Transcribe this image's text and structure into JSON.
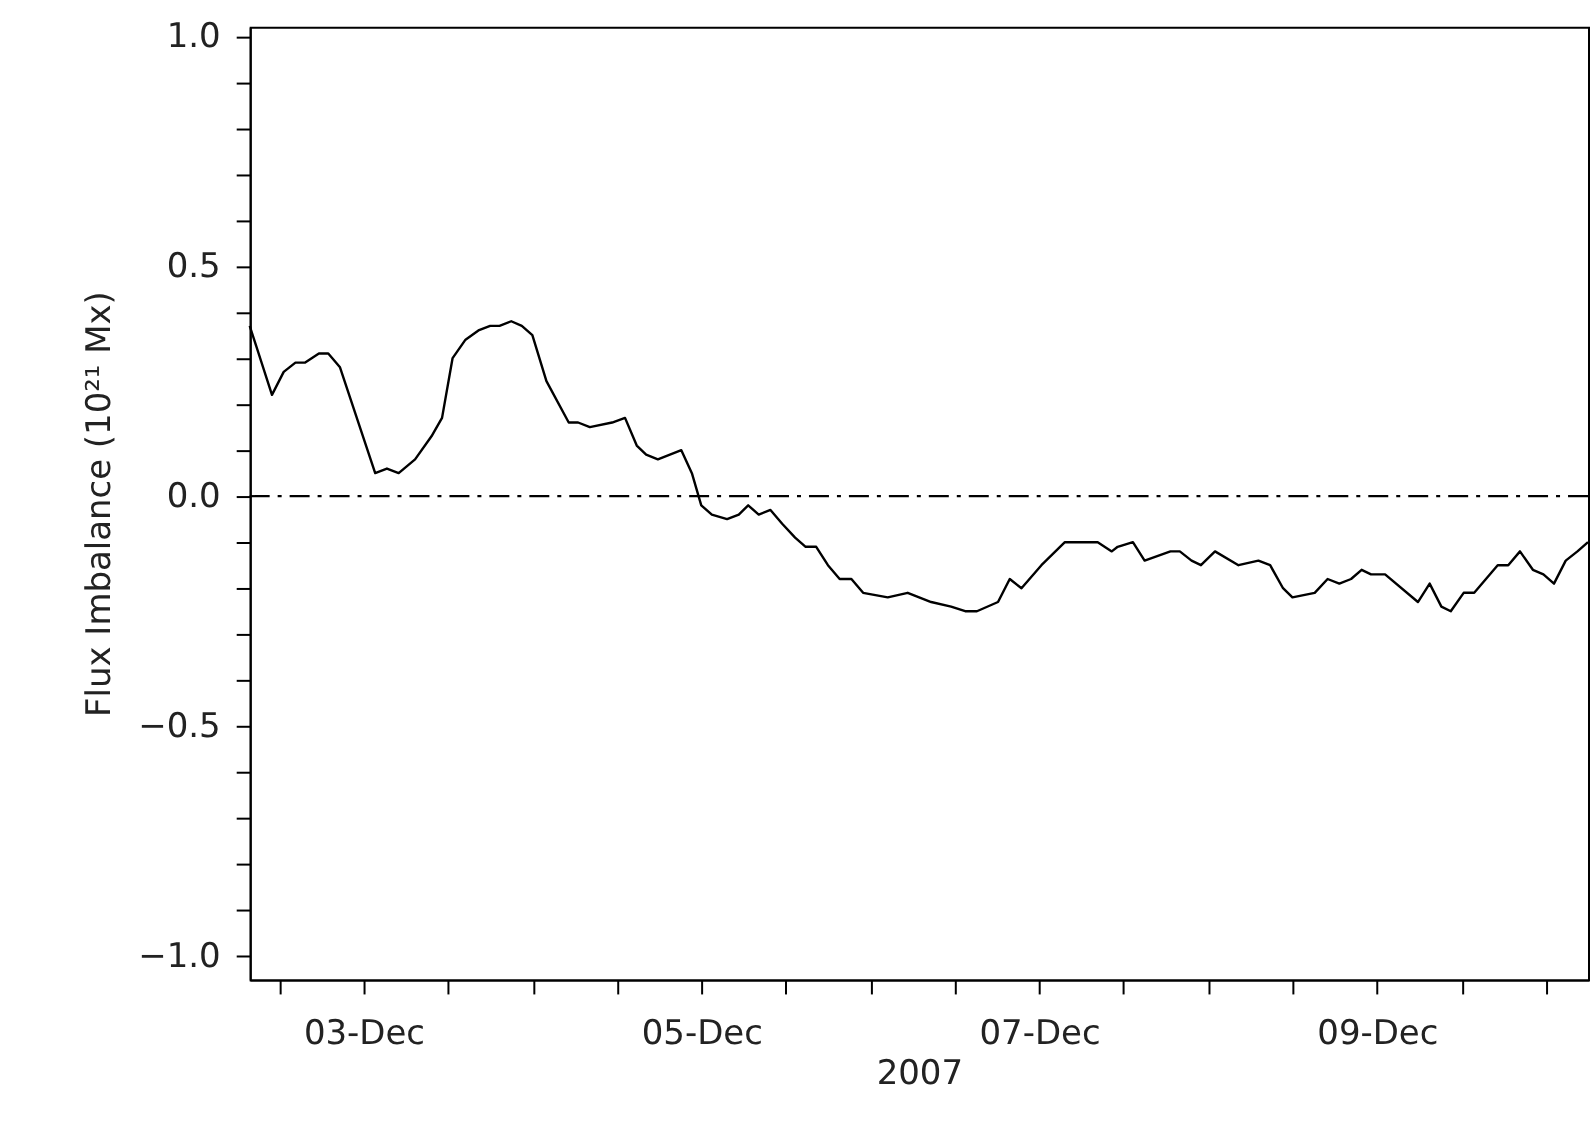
{
  "chart_data": {
    "type": "line",
    "xlabel": "2007",
    "ylabel": "Flux Imbalance (10²¹ Mx)",
    "x": [
      "2007-12-02T07:50",
      "2007-12-02T11:00",
      "2007-12-02T12:40",
      "2007-12-02T14:20",
      "2007-12-02T15:40",
      "2007-12-02T17:40",
      "2007-12-02T19:00",
      "2007-12-02T20:40",
      "2007-12-03T01:40",
      "2007-12-03T03:20",
      "2007-12-03T05:00",
      "2007-12-03T07:20",
      "2007-12-03T09:40",
      "2007-12-03T11:10",
      "2007-12-03T12:40",
      "2007-12-03T14:30",
      "2007-12-03T16:20",
      "2007-12-03T18:00",
      "2007-12-03T19:20",
      "2007-12-03T21:00",
      "2007-12-03T22:30",
      "2007-12-04T00:00",
      "2007-12-04T02:00",
      "2007-12-04T05:10",
      "2007-12-04T06:30",
      "2007-12-04T08:10",
      "2007-12-04T11:20",
      "2007-12-04T13:10",
      "2007-12-04T14:50",
      "2007-12-04T16:10",
      "2007-12-04T17:50",
      "2007-12-04T21:10",
      "2007-12-04T22:40",
      "2007-12-05T00:00",
      "2007-12-05T01:30",
      "2007-12-05T03:40",
      "2007-12-05T05:20",
      "2007-12-05T06:40",
      "2007-12-05T08:10",
      "2007-12-05T09:50",
      "2007-12-05T11:30",
      "2007-12-05T13:20",
      "2007-12-05T14:50",
      "2007-12-05T16:20",
      "2007-12-05T18:00",
      "2007-12-05T19:40",
      "2007-12-05T21:20",
      "2007-12-05T23:00",
      "2007-12-06T02:30",
      "2007-12-06T05:20",
      "2007-12-06T08:40",
      "2007-12-06T11:30",
      "2007-12-06T13:30",
      "2007-12-06T15:10",
      "2007-12-06T18:10",
      "2007-12-06T19:50",
      "2007-12-06T21:30",
      "2007-12-07T00:20",
      "2007-12-07T03:40",
      "2007-12-07T05:30",
      "2007-12-07T08:20",
      "2007-12-07T10:20",
      "2007-12-07T11:10",
      "2007-12-07T13:20",
      "2007-12-07T15:00",
      "2007-12-07T18:40",
      "2007-12-07T20:00",
      "2007-12-07T21:40",
      "2007-12-07T23:00",
      "2007-12-08T01:00",
      "2007-12-08T04:20",
      "2007-12-08T07:10",
      "2007-12-08T08:50",
      "2007-12-08T10:40",
      "2007-12-08T12:00",
      "2007-12-08T15:10",
      "2007-12-08T17:00",
      "2007-12-08T18:40",
      "2007-12-08T20:20",
      "2007-12-08T21:50",
      "2007-12-08T23:10",
      "2007-12-09T01:10",
      "2007-12-09T05:50",
      "2007-12-09T07:30",
      "2007-12-09T09:10",
      "2007-12-09T10:30",
      "2007-12-09T12:20",
      "2007-12-09T13:50",
      "2007-12-09T17:10",
      "2007-12-09T18:40",
      "2007-12-09T20:20",
      "2007-12-09T22:10",
      "2007-12-09T23:40",
      "2007-12-10T01:10",
      "2007-12-10T02:50",
      "2007-12-10T04:30",
      "2007-12-10T06:00"
    ],
    "series": [
      {
        "color": "#000000",
        "values": [
          0.37,
          0.22,
          0.27,
          0.29,
          0.29,
          0.31,
          0.31,
          0.28,
          0.05,
          0.06,
          0.05,
          0.08,
          0.13,
          0.17,
          0.3,
          0.34,
          0.36,
          0.37,
          0.37,
          0.38,
          0.37,
          0.35,
          0.25,
          0.16,
          0.16,
          0.15,
          0.16,
          0.17,
          0.11,
          0.09,
          0.08,
          0.1,
          0.05,
          -0.02,
          -0.04,
          -0.05,
          -0.04,
          -0.02,
          -0.04,
          -0.03,
          -0.06,
          -0.09,
          -0.11,
          -0.11,
          -0.15,
          -0.18,
          -0.18,
          -0.21,
          -0.22,
          -0.21,
          -0.23,
          -0.24,
          -0.25,
          -0.25,
          -0.23,
          -0.18,
          -0.2,
          -0.15,
          -0.1,
          -0.1,
          -0.1,
          -0.12,
          -0.11,
          -0.1,
          -0.14,
          -0.12,
          -0.12,
          -0.14,
          -0.15,
          -0.12,
          -0.15,
          -0.14,
          -0.15,
          -0.2,
          -0.22,
          -0.21,
          -0.18,
          -0.19,
          -0.18,
          -0.16,
          -0.17,
          -0.17,
          -0.23,
          -0.19,
          -0.24,
          -0.25,
          -0.21,
          -0.21,
          -0.15,
          -0.15,
          -0.12,
          -0.16,
          -0.17,
          -0.19,
          -0.14,
          -0.12,
          -0.1
        ]
      }
    ],
    "xlim": [
      "2007-12-02T07:50",
      "2007-12-10T06:00"
    ],
    "xticks": [
      {
        "value": "2007-12-02T12:00",
        "label": null
      },
      {
        "value": "2007-12-03",
        "label": "03-Dec"
      },
      {
        "value": "2007-12-03T12:00",
        "label": null
      },
      {
        "value": "2007-12-04",
        "label": null
      },
      {
        "value": "2007-12-04T12:00",
        "label": null
      },
      {
        "value": "2007-12-05",
        "label": "05-Dec"
      },
      {
        "value": "2007-12-05T12:00",
        "label": null
      },
      {
        "value": "2007-12-06",
        "label": null
      },
      {
        "value": "2007-12-06T12:00",
        "label": null
      },
      {
        "value": "2007-12-07",
        "label": "07-Dec"
      },
      {
        "value": "2007-12-07T12:00",
        "label": null
      },
      {
        "value": "2007-12-08",
        "label": null
      },
      {
        "value": "2007-12-08T12:00",
        "label": null
      },
      {
        "value": "2007-12-09",
        "label": "09-Dec"
      },
      {
        "value": "2007-12-09T12:00",
        "label": null
      },
      {
        "value": "2007-12-10",
        "label": null
      }
    ],
    "ylim": [
      -1.05,
      1.02
    ],
    "yticks": [
      {
        "value": -1,
        "label": "−1.0"
      },
      {
        "value": -0.9,
        "label": null
      },
      {
        "value": -0.8,
        "label": null
      },
      {
        "value": -0.7,
        "label": null
      },
      {
        "value": -0.6,
        "label": null
      },
      {
        "value": -0.5,
        "label": "−0.5"
      },
      {
        "value": -0.4,
        "label": null
      },
      {
        "value": -0.3,
        "label": null
      },
      {
        "value": -0.2,
        "label": null
      },
      {
        "value": -0.1,
        "label": null
      },
      {
        "value": 0,
        "label": "0.0"
      },
      {
        "value": 0.1,
        "label": null
      },
      {
        "value": 0.2,
        "label": null
      },
      {
        "value": 0.3,
        "label": null
      },
      {
        "value": 0.4,
        "label": null
      },
      {
        "value": 0.5,
        "label": "0.5"
      },
      {
        "value": 0.6,
        "label": null
      },
      {
        "value": 0.7,
        "label": null
      },
      {
        "value": 0.8,
        "label": null
      },
      {
        "value": 0.9,
        "label": null
      },
      {
        "value": 1,
        "label": "1.0"
      }
    ],
    "ref_lines": [
      {
        "axis": "y",
        "value": 0,
        "label": null,
        "color": "#000000",
        "line_style": "dashdot"
      }
    ],
    "grid": false,
    "marker": "none",
    "line_style": "solid"
  }
}
